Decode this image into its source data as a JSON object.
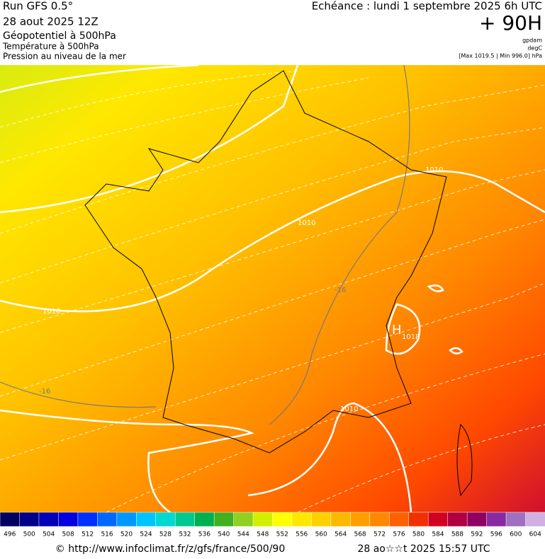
{
  "header": {
    "run": "Run GFS 0.5°",
    "date": "28 aout 2025 12Z",
    "field1": "Géopotentiel à 500hPa",
    "field2": "Température à 500hPa",
    "field3": "Pression au niveau de la mer",
    "valid": "Echéance : lundi 1 septembre 2025 6h UTC",
    "lead": "+ 90H",
    "unit1": "gpdam",
    "unit2": "degC",
    "range": "[Max 1019.5 | Min 996.0] hPa"
  },
  "map": {
    "labels": [
      "1010",
      "1010",
      "1010",
      "1010",
      "-16",
      "-16",
      "H",
      "1018"
    ]
  },
  "colorbar": {
    "labels": [
      496,
      500,
      504,
      508,
      512,
      516,
      520,
      524,
      528,
      532,
      536,
      540,
      544,
      548,
      552,
      556,
      560,
      564,
      568,
      572,
      576,
      580,
      584,
      588,
      592,
      596,
      600,
      604
    ],
    "colors": [
      "#000060",
      "#00008b",
      "#0000b8",
      "#0000e0",
      "#0030ff",
      "#0068ff",
      "#0098ff",
      "#00c4ff",
      "#00d8d0",
      "#00c890",
      "#00b050",
      "#40b020",
      "#90d020",
      "#d0f000",
      "#ffff00",
      "#ffe800",
      "#ffd000",
      "#ffb800",
      "#ffa000",
      "#ff8800",
      "#ff6000",
      "#f03000",
      "#d00020",
      "#b00040",
      "#900060",
      "#8a2aa0",
      "#a070c0",
      "#d0b0e0"
    ]
  },
  "footer": {
    "url": "© http://www.infoclimat.fr/z/gfs/france/500/90",
    "time": "28 ao☆☆t 2025 15:57 UTC"
  }
}
